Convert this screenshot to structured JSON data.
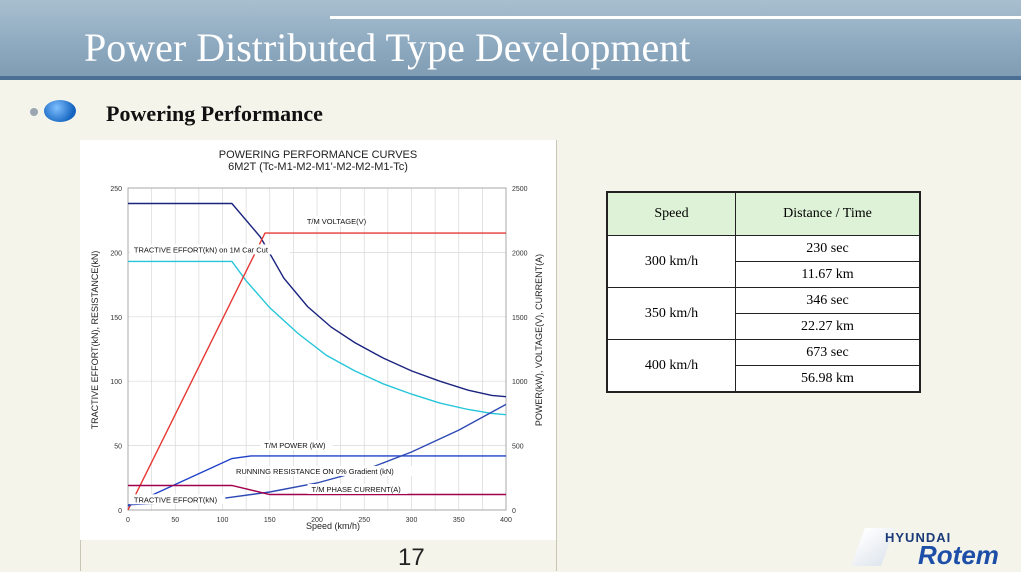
{
  "header": {
    "title": "Power Distributed Type Development",
    "subtitle": "Powering Performance"
  },
  "chart_data": {
    "type": "line",
    "title": "POWERING PERFORMANCE CURVES",
    "subtitle": "6M2T (Tc-M1-M2-M1'-M2-M2-M1-Tc)",
    "xlabel": "Speed (km/h)",
    "ylabel_left": "TRACTIVE EFFORT(kN), RESISTANCE(kN)",
    "ylabel_right": "POWER(kW), VOLTAGE(V), CURRENT(A)",
    "x_ticks": [
      0,
      50,
      100,
      150,
      200,
      250,
      300,
      350,
      400
    ],
    "y_ticks": [
      0,
      50,
      100,
      150,
      200,
      250
    ],
    "xlim": [
      0,
      400
    ],
    "ylim": [
      0,
      250
    ],
    "grid": true,
    "series": [
      {
        "name": "TRACTIVE EFFORT(kN)",
        "color": "#1a237e",
        "x": [
          0,
          110,
          140,
          165,
          190,
          215,
          240,
          270,
          300,
          330,
          360,
          385,
          400
        ],
        "y": [
          238,
          238,
          212,
          180,
          158,
          142,
          130,
          118,
          108,
          100,
          93,
          89,
          88
        ]
      },
      {
        "name": "TRACTIVE EFFORT(kN) on 1M Car Cut",
        "color": "#26c6da",
        "x": [
          0,
          110,
          125,
          150,
          180,
          210,
          240,
          270,
          300,
          330,
          360,
          385,
          400
        ],
        "y": [
          193,
          193,
          178,
          157,
          137,
          120,
          108,
          98,
          90,
          83,
          78,
          75,
          74
        ]
      },
      {
        "name": "T/M VOLTAGE(V)",
        "color": "#e53935",
        "x": [
          0,
          145,
          400
        ],
        "y": [
          0,
          215,
          215
        ]
      },
      {
        "name": "T/M POWER (kW)",
        "color": "#1e40c8",
        "x": [
          0,
          110,
          130,
          400
        ],
        "y": [
          3,
          40,
          42,
          42
        ]
      },
      {
        "name": "RUNNING RESISTANCE ON 0% Gradient (kN)",
        "color": "#2e49b5",
        "x": [
          0,
          50,
          100,
          150,
          200,
          250,
          300,
          350,
          400
        ],
        "y": [
          4,
          6,
          9,
          14,
          21,
          31,
          45,
          62,
          82
        ]
      },
      {
        "name": "T/M PHASE CURRENT(A)",
        "color": "#a0004d",
        "x": [
          0,
          110,
          150,
          400
        ],
        "y": [
          19,
          19,
          12,
          12
        ]
      }
    ],
    "annotations": [
      {
        "text": "TRACTIVE EFFORT(kN)",
        "series": 0
      },
      {
        "text": "T/M VOLTAGE(V)",
        "series": 2
      },
      {
        "text": "TRACTIVE EFFORT(kN) on 1M Car Cut",
        "series": 1
      },
      {
        "text": "T/M POWER (kW)",
        "series": 3
      },
      {
        "text": "RUNNING RESISTANCE ON 0% Gradient (kN)",
        "series": 4
      },
      {
        "text": "T/M PHASE CURRENT(A)",
        "series": 5
      }
    ]
  },
  "table": {
    "headers": [
      "Speed",
      "Distance / Time"
    ],
    "rows": [
      {
        "speed": "300 km/h",
        "time": "230 sec",
        "distance": "11.67 km"
      },
      {
        "speed": "350 km/h",
        "time": "346 sec",
        "distance": "22.27 km"
      },
      {
        "speed": "400 km/h",
        "time": "673 sec",
        "distance": "56.98 km"
      }
    ]
  },
  "footer": {
    "page_number": "17",
    "logo_brand": "HYUNDAI",
    "logo_name": "Rotem"
  },
  "colors": {
    "banner": "#8eaac0",
    "table_header": "#ddf2d6",
    "background": "#f5f4ea"
  }
}
